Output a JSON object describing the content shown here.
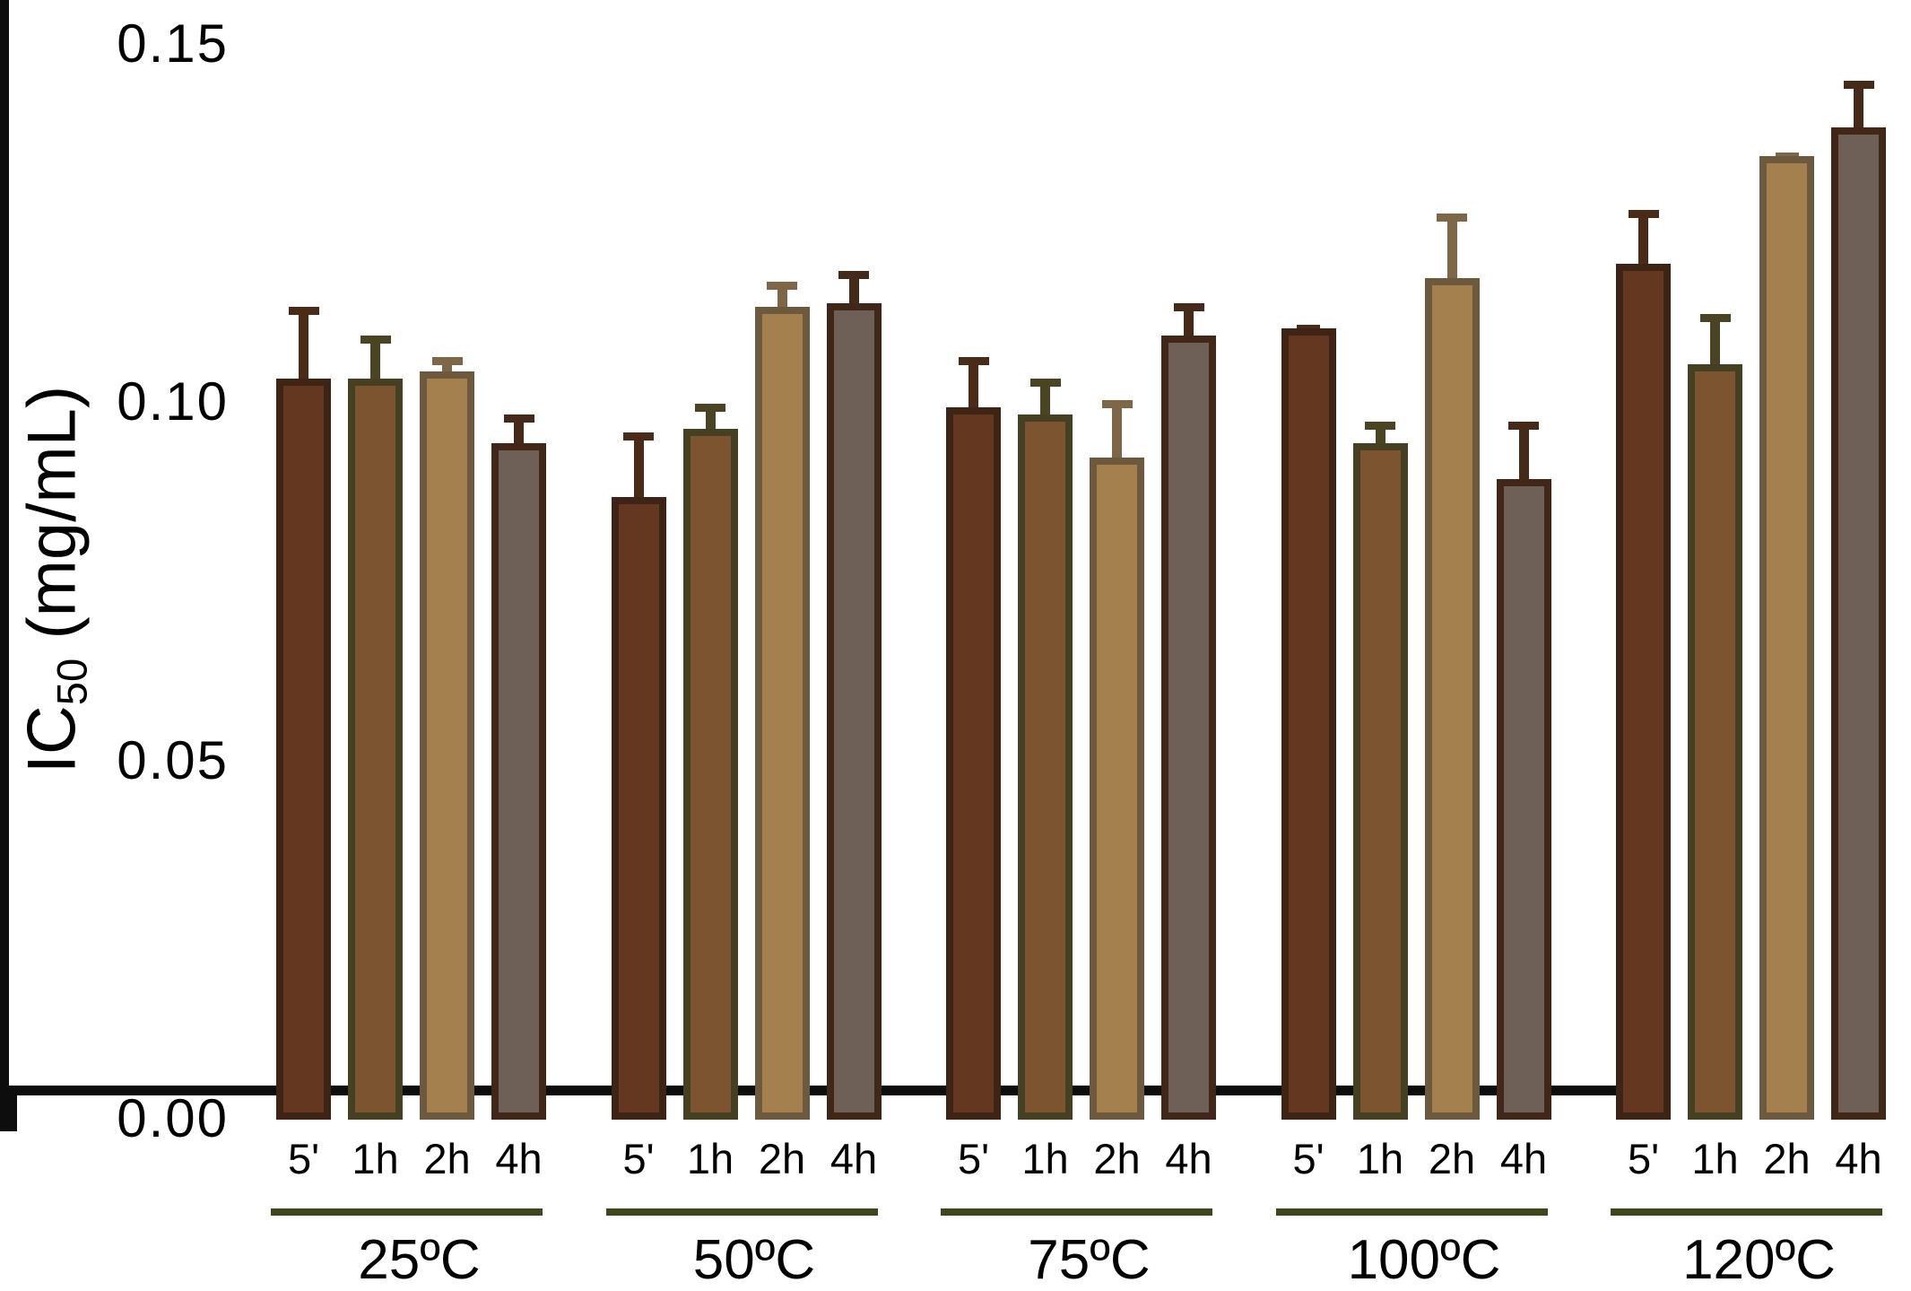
{
  "chart_data": {
    "type": "bar",
    "title": "",
    "ylabel": "IC50 (mg/mL)",
    "ylabel_parts": {
      "main": "IC",
      "sub": "50",
      "rest": " (mg/mL)"
    },
    "xlabel": "",
    "ylim": [
      0,
      0.15
    ],
    "grid": false,
    "legend": "none",
    "yticks": [
      {
        "value": 0.15,
        "label": "0.15"
      },
      {
        "value": 0.1,
        "label": "0.10"
      },
      {
        "value": 0.05,
        "label": "0.05"
      },
      {
        "value": 0.0,
        "label": "0.00"
      }
    ],
    "series_labels": [
      "5'",
      "1h",
      "2h",
      "4h"
    ],
    "series_styles": [
      {
        "name": "5-min",
        "fill": "#643720",
        "border": "#3E2415",
        "error": "#4A2B18"
      },
      {
        "name": "1-hour",
        "fill": "#7D5430",
        "border": "#454021",
        "error": "#4A4422"
      },
      {
        "name": "2-hour",
        "fill": "#A3804E",
        "border": "#6D5A3E",
        "error": "#7D6747"
      },
      {
        "name": "4-hour",
        "fill": "#6F6057",
        "border": "#402718",
        "error": "#452A1A"
      }
    ],
    "axis_color": "#0d0d0d",
    "separator_color": "#3E461C",
    "groups": [
      {
        "label": "25ºC",
        "bars": [
          {
            "time": "5'",
            "value": 0.103,
            "error_top": 0.113
          },
          {
            "time": "1h",
            "value": 0.103,
            "error_top": 0.109
          },
          {
            "time": "2h",
            "value": 0.104,
            "error_top": 0.106
          },
          {
            "time": "4h",
            "value": 0.094,
            "error_top": 0.098
          }
        ]
      },
      {
        "label": "50ºC",
        "bars": [
          {
            "time": "5'",
            "value": 0.0865,
            "error_top": 0.0955
          },
          {
            "time": "1h",
            "value": 0.096,
            "error_top": 0.0995
          },
          {
            "time": "2h",
            "value": 0.113,
            "error_top": 0.1165
          },
          {
            "time": "4h",
            "value": 0.1135,
            "error_top": 0.118
          }
        ]
      },
      {
        "label": "75ºC",
        "bars": [
          {
            "time": "5'",
            "value": 0.099,
            "error_top": 0.106
          },
          {
            "time": "1h",
            "value": 0.098,
            "error_top": 0.103
          },
          {
            "time": "2h",
            "value": 0.092,
            "error_top": 0.1
          },
          {
            "time": "4h",
            "value": 0.109,
            "error_top": 0.1135
          }
        ]
      },
      {
        "label": "100ºC",
        "bars": [
          {
            "time": "5'",
            "value": 0.11,
            "error_top": 0.1105
          },
          {
            "time": "1h",
            "value": 0.094,
            "error_top": 0.097
          },
          {
            "time": "2h",
            "value": 0.117,
            "error_top": 0.126
          },
          {
            "time": "4h",
            "value": 0.089,
            "error_top": 0.097
          }
        ]
      },
      {
        "label": "120ºC",
        "bars": [
          {
            "time": "5'",
            "value": 0.119,
            "error_top": 0.1265
          },
          {
            "time": "1h",
            "value": 0.105,
            "error_top": 0.112
          },
          {
            "time": "2h",
            "value": 0.134,
            "error_top": 0.1345
          },
          {
            "time": "4h",
            "value": 0.138,
            "error_top": 0.1445
          }
        ]
      }
    ]
  }
}
